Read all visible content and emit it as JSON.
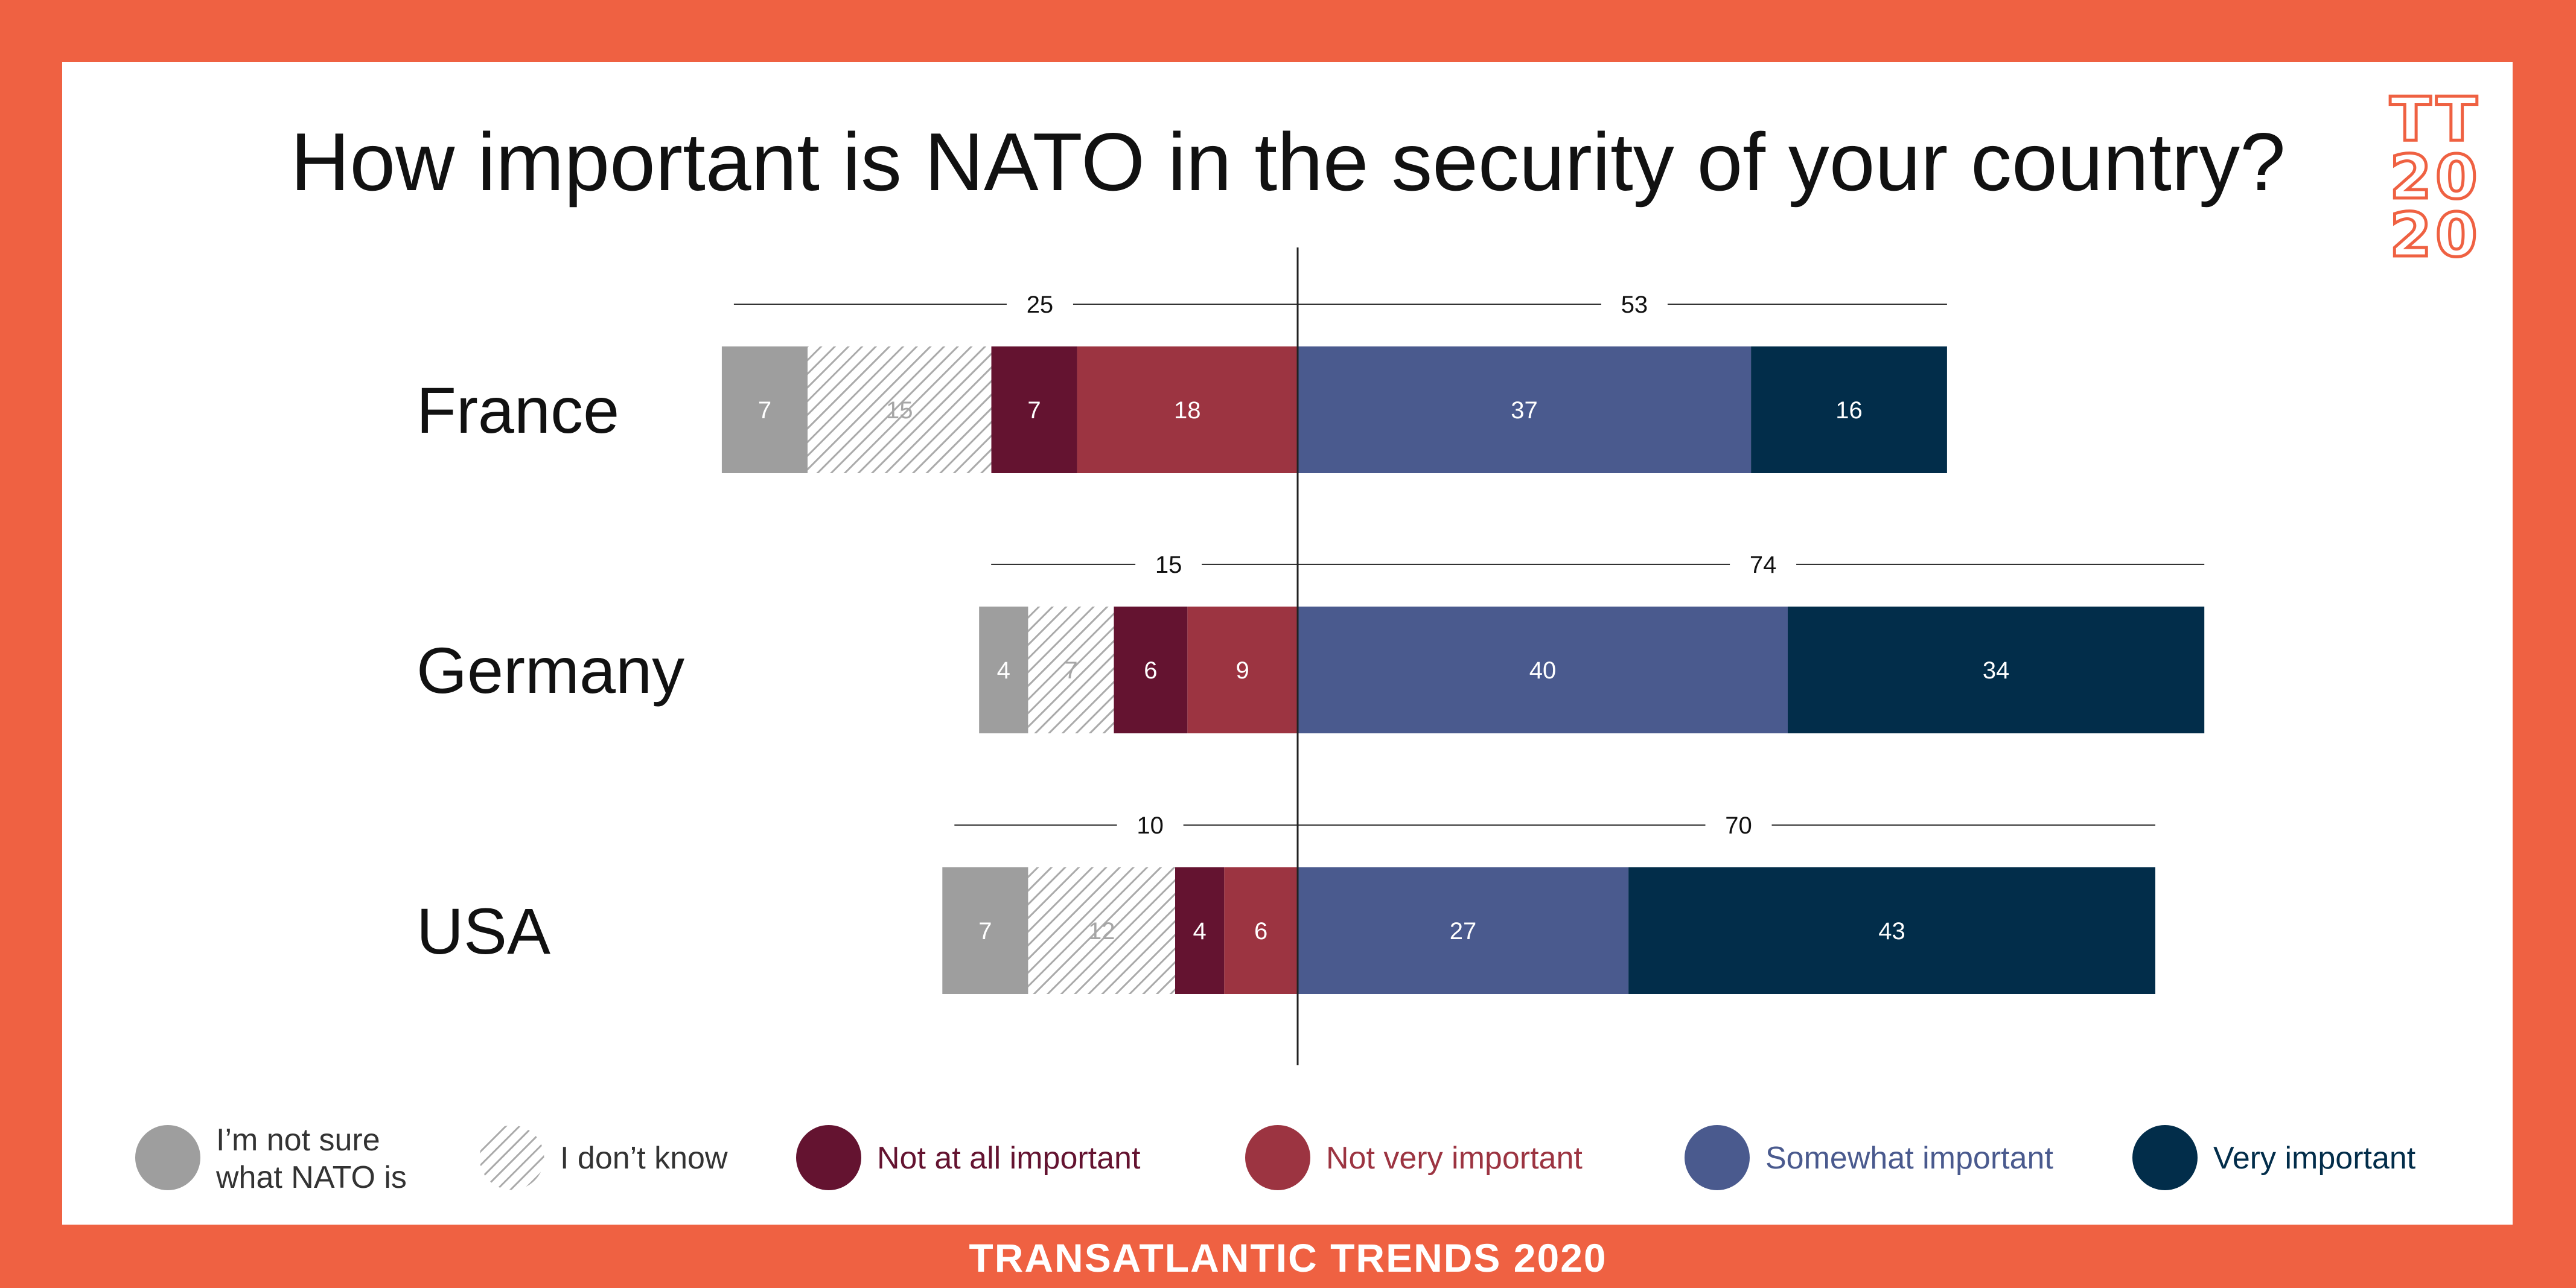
{
  "title": "How important is NATO in the security of your country?",
  "logo": [
    "TT",
    "20",
    "20"
  ],
  "footer": "TRANSATLANTIC TRENDS 2020",
  "colors": {
    "frame": "#EF6142",
    "not_sure": "#9E9E9E",
    "dont_know_hatch": "#AAAAAA",
    "not_at_all": "#641330",
    "not_very": "#9C3441",
    "somewhat": "#4A5A8E",
    "very": "#022D4A"
  },
  "legend": [
    {
      "key": "not_sure",
      "lines": [
        "I’m not sure",
        "what NATO is"
      ]
    },
    {
      "key": "dont_know",
      "lines": [
        "I don’t know"
      ]
    },
    {
      "key": "not_at_all",
      "lines": [
        "Not at all important"
      ]
    },
    {
      "key": "not_very",
      "lines": [
        "Not very important"
      ]
    },
    {
      "key": "somewhat",
      "lines": [
        "Somewhat important"
      ]
    },
    {
      "key": "very",
      "lines": [
        "Very important"
      ]
    }
  ],
  "chart_data": {
    "type": "bar",
    "orientation": "horizontal-diverging-stacked",
    "categories": [
      "France",
      "Germany",
      "USA"
    ],
    "negative_series": [
      {
        "key": "not_sure",
        "name": "I’m not sure what NATO is",
        "values": [
          7,
          4,
          7
        ]
      },
      {
        "key": "dont_know",
        "name": "I don’t know",
        "values": [
          15,
          7,
          12
        ]
      },
      {
        "key": "not_at_all",
        "name": "Not at all important",
        "values": [
          7,
          6,
          4
        ]
      },
      {
        "key": "not_very",
        "name": "Not very important",
        "values": [
          18,
          9,
          6
        ]
      }
    ],
    "positive_series": [
      {
        "key": "somewhat",
        "name": "Somewhat important",
        "values": [
          37,
          40,
          27
        ]
      },
      {
        "key": "very",
        "name": "Very important",
        "values": [
          16,
          34,
          43
        ]
      }
    ],
    "negative_totals": [
      25,
      15,
      10
    ],
    "positive_totals": [
      53,
      74,
      70
    ]
  }
}
